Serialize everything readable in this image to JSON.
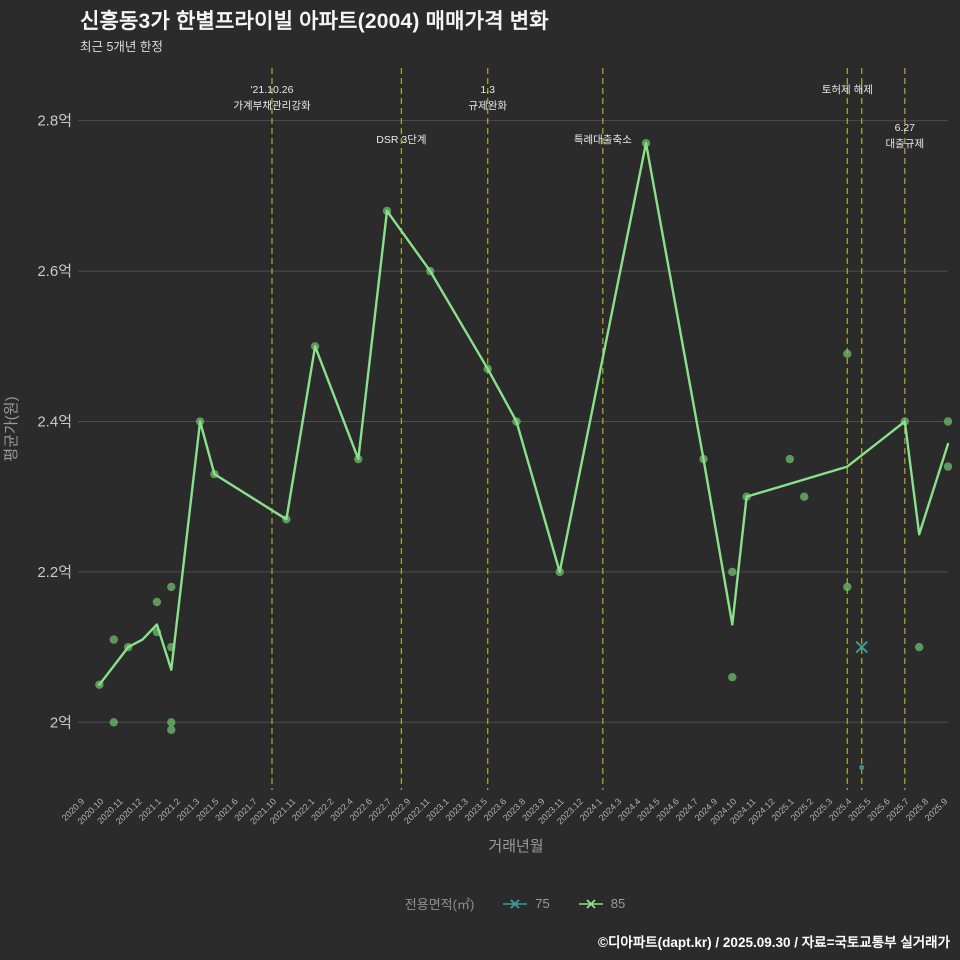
{
  "header": {
    "title": "신흥동3가 한별프라이빌 아파트(2004) 매매가격 변화",
    "subtitle": "최근 5개년 한정"
  },
  "footer": {
    "credit": "©디아파트(dapt.kr) / 2025.09.30 / 자료=국토교통부 실거래가"
  },
  "legend": {
    "title": "전용면적(㎡)",
    "items": [
      {
        "label": "75",
        "color": "#3a9e97",
        "marker": "x"
      },
      {
        "label": "85",
        "color": "#8be08b",
        "marker": "x"
      }
    ]
  },
  "chart_data": {
    "type": "line",
    "title": "신흥동3가 한별프라이빌 아파트(2004) 매매가격 변화",
    "subtitle": "최근 5개년 한정",
    "xlabel": "거래년월",
    "ylabel": "평균가(원)",
    "unit": "억원",
    "grid": "horizontal",
    "legend_position": "bottom",
    "ylim": [
      1.91,
      2.87
    ],
    "x_range_months": [
      "2020.9",
      "2025.9"
    ],
    "yticks": [
      {
        "v": 2.0,
        "label": "2억"
      },
      {
        "v": 2.2,
        "label": "2.2억"
      },
      {
        "v": 2.4,
        "label": "2.4억"
      },
      {
        "v": 2.6,
        "label": "2.6억"
      },
      {
        "v": 2.8,
        "label": "2.8억"
      }
    ],
    "xtick_labels": [
      "2020.9",
      "2020.10",
      "2020.11",
      "2020.12",
      "2021.1",
      "2021.2",
      "2021.3",
      "2021.5",
      "2021.6",
      "2021.7",
      "2021.10",
      "2021.11",
      "2022.1",
      "2022.2",
      "2022.4",
      "2022.6",
      "2022.7",
      "2022.9",
      "2022.11",
      "2023.1",
      "2023.3",
      "2023.5",
      "2023.6",
      "2023.8",
      "2023.9",
      "2023.11",
      "2023.12",
      "2024.1",
      "2024.3",
      "2024.4",
      "2024.5",
      "2024.6",
      "2024.7",
      "2024.9",
      "2024.10",
      "2024.11",
      "2024.12",
      "2025.1",
      "2025.2",
      "2025.3",
      "2025.4",
      "2025.5",
      "2025.6",
      "2025.7",
      "2025.8",
      "2025.9"
    ],
    "colors": {
      "background": "#2b2b2b",
      "grid": "#4c4c4c",
      "tick_text": "#b3b3b3",
      "event_line": "#b2b22e",
      "event_text": "#e8e8e8",
      "dot": "#6fbf6f"
    },
    "events": [
      {
        "month": "2021.10",
        "row": "top",
        "label_lines": [
          "'21.10.26",
          "가계부채관리강화"
        ]
      },
      {
        "month": "2022.7",
        "row": "mid",
        "label_lines": [
          "DSR 3단계"
        ]
      },
      {
        "month": "2023.1",
        "row": "top",
        "label_lines": [
          "1.3",
          "규제완화"
        ]
      },
      {
        "month": "2023.9",
        "row": "mid",
        "label_lines": [
          "특례대출축소"
        ]
      },
      {
        "month": "2025.2",
        "row": "top",
        "label_lines": [
          "토허제 해제"
        ]
      },
      {
        "month": "2025.3",
        "row": "top",
        "label_lines": []
      },
      {
        "month": "2025.6",
        "row": "mid",
        "label_lines": [
          "6.27",
          "대출규제"
        ]
      }
    ],
    "series": [
      {
        "name": "75",
        "color": "#3a9e97",
        "avg_line_points": [
          {
            "m": "2025.3",
            "v": 2.1
          }
        ],
        "transaction_dots": [
          {
            "m": "2025.3",
            "v": 1.94
          }
        ]
      },
      {
        "name": "85",
        "color": "#8be08b",
        "avg_line_points": [
          {
            "m": "2020.10",
            "v": 2.05
          },
          {
            "m": "2020.12",
            "v": 2.1
          },
          {
            "m": "2021.1",
            "v": 2.11
          },
          {
            "m": "2021.2",
            "v": 2.13
          },
          {
            "m": "2021.3",
            "v": 2.07
          },
          {
            "m": "2021.5",
            "v": 2.4
          },
          {
            "m": "2021.6",
            "v": 2.33
          },
          {
            "m": "2021.11",
            "v": 2.27
          },
          {
            "m": "2022.1",
            "v": 2.5
          },
          {
            "m": "2022.4",
            "v": 2.35
          },
          {
            "m": "2022.6",
            "v": 2.68
          },
          {
            "m": "2022.9",
            "v": 2.6
          },
          {
            "m": "2023.1",
            "v": 2.47
          },
          {
            "m": "2023.3",
            "v": 2.4
          },
          {
            "m": "2023.6",
            "v": 2.2
          },
          {
            "m": "2023.12",
            "v": 2.77
          },
          {
            "m": "2024.4",
            "v": 2.35
          },
          {
            "m": "2024.6",
            "v": 2.13
          },
          {
            "m": "2024.7",
            "v": 2.3
          },
          {
            "m": "2025.2",
            "v": 2.34
          },
          {
            "m": "2025.6",
            "v": 2.4
          },
          {
            "m": "2025.7",
            "v": 2.25
          },
          {
            "m": "2025.9",
            "v": 2.37
          }
        ],
        "transaction_dots": [
          {
            "m": "2020.10",
            "v": 2.05
          },
          {
            "m": "2020.11",
            "v": 2.0
          },
          {
            "m": "2020.11",
            "v": 2.11
          },
          {
            "m": "2020.12",
            "v": 2.1
          },
          {
            "m": "2021.2",
            "v": 2.16
          },
          {
            "m": "2021.2",
            "v": 2.12
          },
          {
            "m": "2021.3",
            "v": 2.18
          },
          {
            "m": "2021.3",
            "v": 2.1
          },
          {
            "m": "2021.3",
            "v": 2.0
          },
          {
            "m": "2021.3",
            "v": 1.99
          },
          {
            "m": "2021.5",
            "v": 2.4
          },
          {
            "m": "2021.6",
            "v": 2.33
          },
          {
            "m": "2021.11",
            "v": 2.27
          },
          {
            "m": "2022.1",
            "v": 2.5
          },
          {
            "m": "2022.4",
            "v": 2.35
          },
          {
            "m": "2022.6",
            "v": 2.68
          },
          {
            "m": "2022.9",
            "v": 2.6
          },
          {
            "m": "2023.1",
            "v": 2.47
          },
          {
            "m": "2023.3",
            "v": 2.4
          },
          {
            "m": "2023.6",
            "v": 2.2
          },
          {
            "m": "2023.12",
            "v": 2.77
          },
          {
            "m": "2024.4",
            "v": 2.35
          },
          {
            "m": "2024.6",
            "v": 2.2
          },
          {
            "m": "2024.6",
            "v": 2.06
          },
          {
            "m": "2024.7",
            "v": 2.3
          },
          {
            "m": "2024.10",
            "v": 2.35
          },
          {
            "m": "2024.11",
            "v": 2.3
          },
          {
            "m": "2025.2",
            "v": 2.49
          },
          {
            "m": "2025.2",
            "v": 2.18
          },
          {
            "m": "2025.6",
            "v": 2.4
          },
          {
            "m": "2025.7",
            "v": 2.1
          },
          {
            "m": "2025.9",
            "v": 2.4
          },
          {
            "m": "2025.9",
            "v": 2.34
          }
        ]
      }
    ]
  }
}
